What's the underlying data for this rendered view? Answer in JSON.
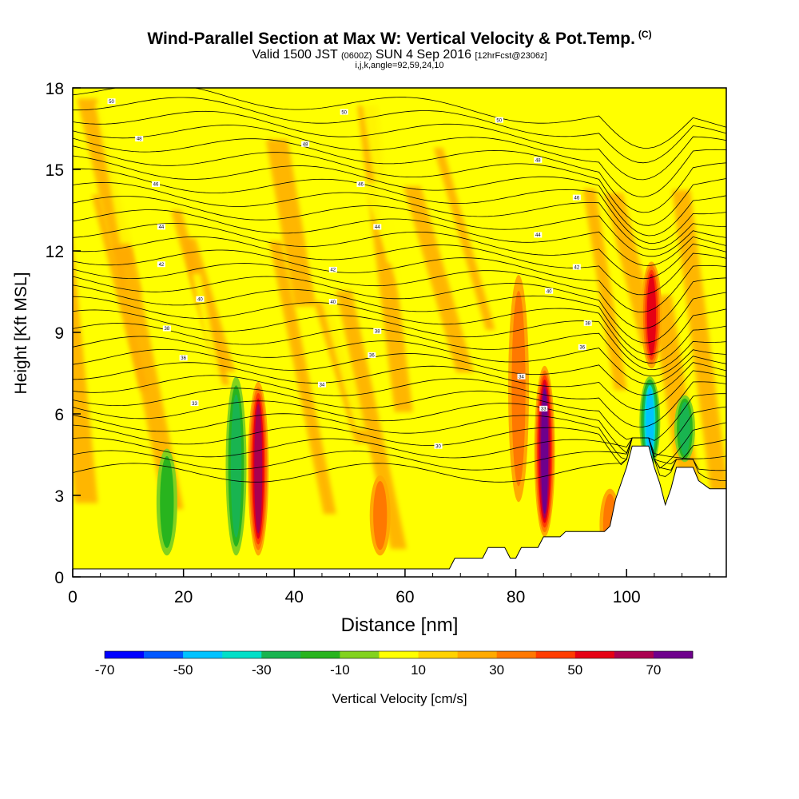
{
  "header": {
    "title": "Wind-Parallel Section at Max W: Vertical Velocity & Pot.Temp.",
    "title_tag": "(C)",
    "valid_a": "Valid 1500 JST",
    "valid_zulu": "(0600Z)",
    "valid_b": "SUN 4 Sep 2016",
    "valid_fcst": "[12hrFcst@2306z]",
    "meta": "i,j,k,angle=92,59,24,10"
  },
  "chart_data": {
    "type": "heatmap",
    "xlabel": "Distance [nm]",
    "ylabel": "Height [Kft MSL]",
    "xlim": [
      0,
      118
    ],
    "ylim": [
      0,
      18
    ],
    "x_ticks": [
      "0",
      "20",
      "40",
      "60",
      "80",
      "100"
    ],
    "y_ticks": [
      "0",
      "3",
      "6",
      "9",
      "12",
      "15",
      "18"
    ],
    "colorbar": {
      "label": "Vertical Velocity [cm/s]",
      "tick_labels": [
        "-70",
        "-50",
        "-30",
        "-10",
        "10",
        "30",
        "50",
        "70"
      ],
      "colors": [
        "#0000ff",
        "#0058ff",
        "#00c3ff",
        "#00dfc8",
        "#19b450",
        "#28b41e",
        "#82d21e",
        "#ffff00",
        "#ffd200",
        "#ffaa00",
        "#ff7800",
        "#ff3c00",
        "#e60014",
        "#aa0050",
        "#6e008c"
      ]
    },
    "background_w_cms": 0,
    "updrafts": [
      {
        "x": 33.5,
        "z_bottom": 0.5,
        "z_top": 7,
        "w_max": 55
      },
      {
        "x": 85.2,
        "z_bottom": 1.2,
        "z_top": 7.6,
        "w_max": 65
      },
      {
        "x": 104.5,
        "z_bottom": 7.5,
        "z_top": 11.5,
        "w_max": 45
      },
      {
        "x": 80.5,
        "z_bottom": 2.5,
        "z_top": 11,
        "w_max": 25
      },
      {
        "x": 55.5,
        "z_bottom": 0.5,
        "z_top": 3.5,
        "w_max": 25
      },
      {
        "x": 97.0,
        "z_bottom": 0.3,
        "z_top": 3.0,
        "w_max": 25
      }
    ],
    "downdrafts": [
      {
        "x": 29.5,
        "z_bottom": 0.5,
        "z_top": 7.2,
        "w_min": -38
      },
      {
        "x": 104.2,
        "z_bottom": 3.8,
        "z_top": 7.2,
        "w_min": -62
      },
      {
        "x": 110.5,
        "z_bottom": 4.0,
        "z_top": 6.5,
        "w_min": -35
      },
      {
        "x": 17.0,
        "z_bottom": 0.5,
        "z_top": 4.5,
        "w_min": -25
      }
    ],
    "terrain": [
      [
        0,
        0
      ],
      [
        68,
        0
      ],
      [
        69,
        0.4
      ],
      [
        74,
        0.4
      ],
      [
        75,
        0.8
      ],
      [
        78,
        0.8
      ],
      [
        79,
        0.4
      ],
      [
        80,
        0.4
      ],
      [
        81,
        0.8
      ],
      [
        84,
        0.8
      ],
      [
        85,
        1.2
      ],
      [
        88,
        1.2
      ],
      [
        89,
        1.4
      ],
      [
        96,
        1.4
      ],
      [
        97,
        1.6
      ],
      [
        98,
        2.6
      ],
      [
        100,
        3.8
      ],
      [
        101,
        4.6
      ],
      [
        104,
        4.6
      ],
      [
        105,
        3.8
      ],
      [
        106,
        3.2
      ],
      [
        107,
        2.4
      ],
      [
        108,
        3.0
      ],
      [
        109,
        3.8
      ],
      [
        112,
        3.8
      ],
      [
        113,
        3.3
      ],
      [
        115,
        3.0
      ],
      [
        118,
        3.0
      ]
    ],
    "isentropes": {
      "levels": [
        30,
        31,
        32,
        33,
        34,
        35,
        36,
        37,
        38,
        39,
        40,
        41,
        42,
        43,
        44,
        45,
        46,
        47,
        48,
        49,
        50,
        51,
        52,
        53,
        54,
        55,
        56,
        57,
        58,
        59,
        60
      ],
      "labels": [
        {
          "text": "30",
          "x": 66,
          "z": 4.6
        },
        {
          "text": "33",
          "x": 22,
          "z": 6.2
        },
        {
          "text": "33",
          "x": 85,
          "z": 6.0
        },
        {
          "text": "34",
          "x": 45,
          "z": 6.9
        },
        {
          "text": "34",
          "x": 81,
          "z": 7.2
        },
        {
          "text": "36",
          "x": 20,
          "z": 7.9
        },
        {
          "text": "36",
          "x": 54,
          "z": 8.0
        },
        {
          "text": "36",
          "x": 92,
          "z": 8.3
        },
        {
          "text": "38",
          "x": 17,
          "z": 9.0
        },
        {
          "text": "38",
          "x": 55,
          "z": 8.9
        },
        {
          "text": "38",
          "x": 93,
          "z": 9.2
        },
        {
          "text": "40",
          "x": 23,
          "z": 10.1
        },
        {
          "text": "40",
          "x": 47,
          "z": 10.0
        },
        {
          "text": "40",
          "x": 86,
          "z": 10.4
        },
        {
          "text": "42",
          "x": 16,
          "z": 11.4
        },
        {
          "text": "42",
          "x": 47,
          "z": 11.2
        },
        {
          "text": "42",
          "x": 91,
          "z": 11.3
        },
        {
          "text": "44",
          "x": 16,
          "z": 12.8
        },
        {
          "text": "44",
          "x": 55,
          "z": 12.8
        },
        {
          "text": "44",
          "x": 84,
          "z": 12.5
        },
        {
          "text": "46",
          "x": 15,
          "z": 14.4
        },
        {
          "text": "46",
          "x": 52,
          "z": 14.4
        },
        {
          "text": "46",
          "x": 91,
          "z": 13.9
        },
        {
          "text": "48",
          "x": 12,
          "z": 16.1
        },
        {
          "text": "48",
          "x": 42,
          "z": 15.9
        },
        {
          "text": "48",
          "x": 84,
          "z": 15.3
        },
        {
          "text": "50",
          "x": 7,
          "z": 17.5
        },
        {
          "text": "50",
          "x": 49,
          "z": 17.1
        },
        {
          "text": "50",
          "x": 77,
          "z": 16.8
        }
      ]
    }
  }
}
